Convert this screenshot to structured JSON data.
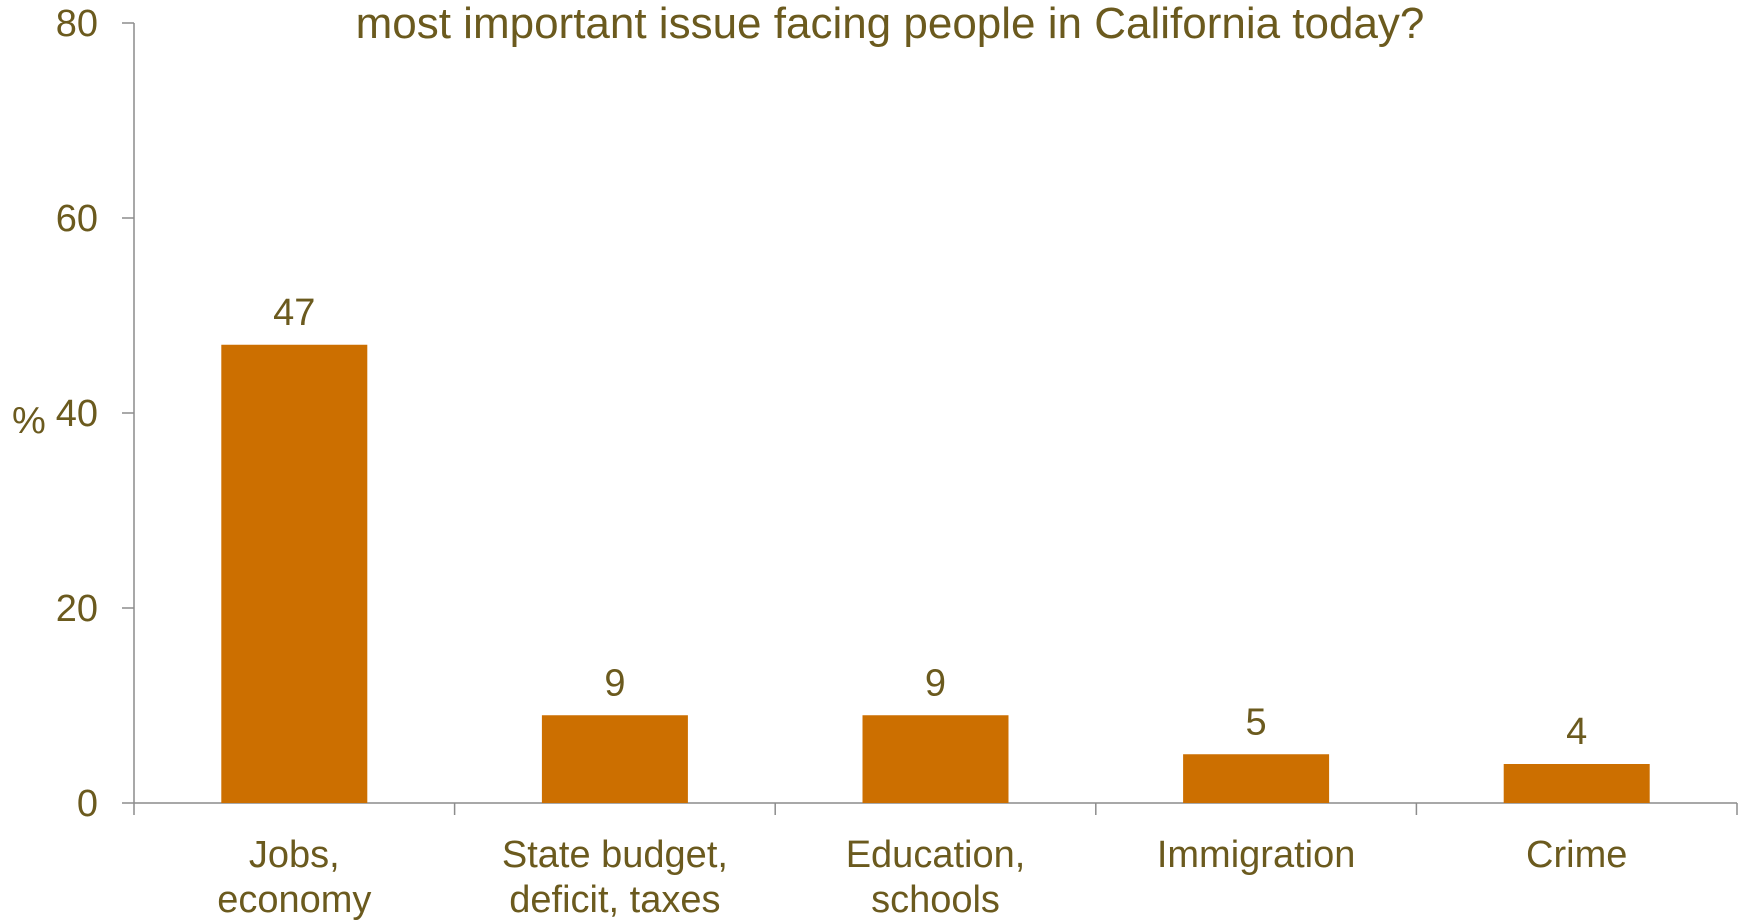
{
  "chart_data": {
    "type": "bar",
    "title": "most important issue facing people in California today?",
    "xlabel": "",
    "ylabel": "%",
    "ylim": [
      0,
      80
    ],
    "yticks": [
      "0",
      "20",
      "40",
      "60",
      "80"
    ],
    "categories": [
      [
        "Jobs,",
        "economy"
      ],
      [
        "State budget,",
        "deficit, taxes"
      ],
      [
        "Education,",
        "schools"
      ],
      [
        "Immigration"
      ],
      [
        "Crime"
      ]
    ],
    "values": [
      47,
      9,
      9,
      5,
      4
    ],
    "data_labels": [
      "47",
      "9",
      "9",
      "5",
      "4"
    ],
    "grid": false,
    "legend": "none"
  },
  "colors": {
    "bar": "#cc6f00",
    "text": "#6b5a1e",
    "axis": "#8c8c8c"
  }
}
